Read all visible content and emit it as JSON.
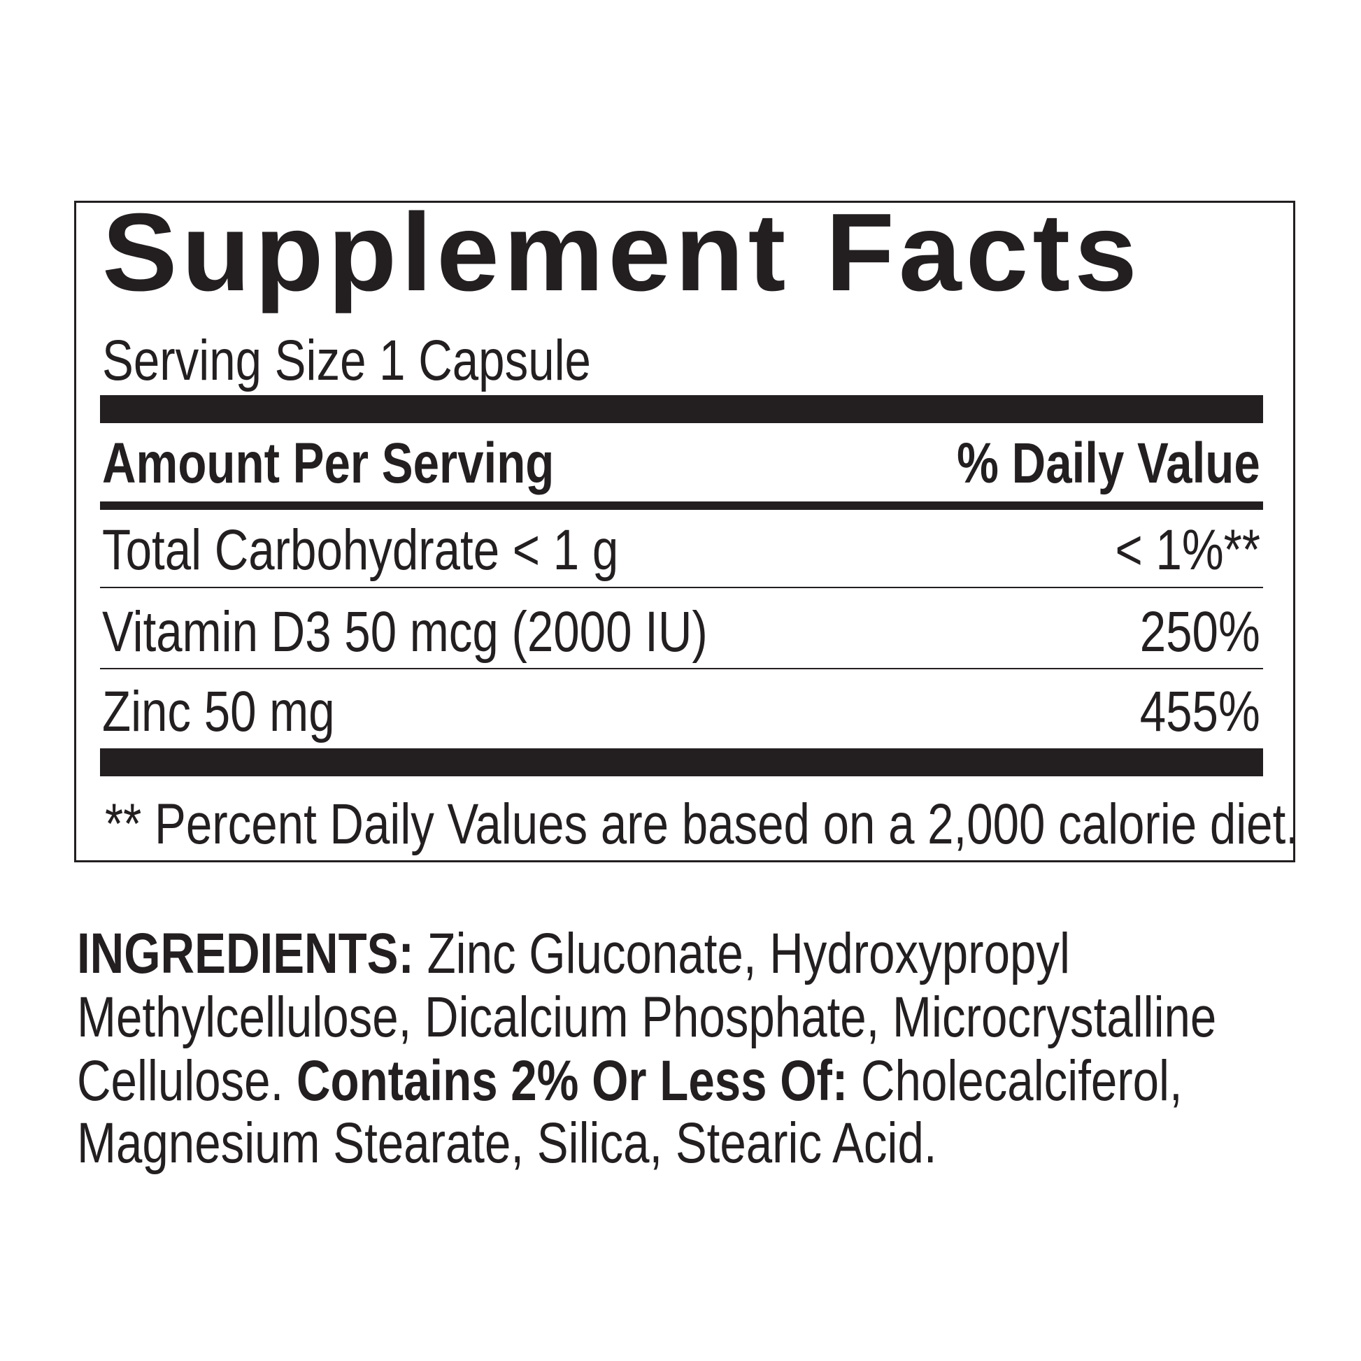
{
  "panel": {
    "title": "Supplement Facts",
    "serving_size": "Serving Size 1 Capsule",
    "header_amount": "Amount Per Serving",
    "header_dv": "% Daily Value",
    "rows": [
      {
        "name": "Total Carbohydrate < 1 g",
        "dv": "< 1%**"
      },
      {
        "name": "Vitamin D3 50 mcg (2000 IU)",
        "dv": "250%"
      },
      {
        "name": "Zinc 50 mg",
        "dv": "455%"
      }
    ],
    "footnote": "** Percent Daily Values are based on a 2,000 calorie diet."
  },
  "ingredients": {
    "label": "INGREDIENTS:",
    "line1": " Zinc Gluconate, Hydroxypropyl",
    "line2": "Methylcellulose, Dicalcium Phosphate, Microcrystalline",
    "line3_a": "Cellulose. ",
    "line3_bold": "Contains 2% Or Less Of:",
    "line3_b": " Cholecalciferol,",
    "line4": "Magnesium Stearate, Silica, Stearic Acid."
  }
}
